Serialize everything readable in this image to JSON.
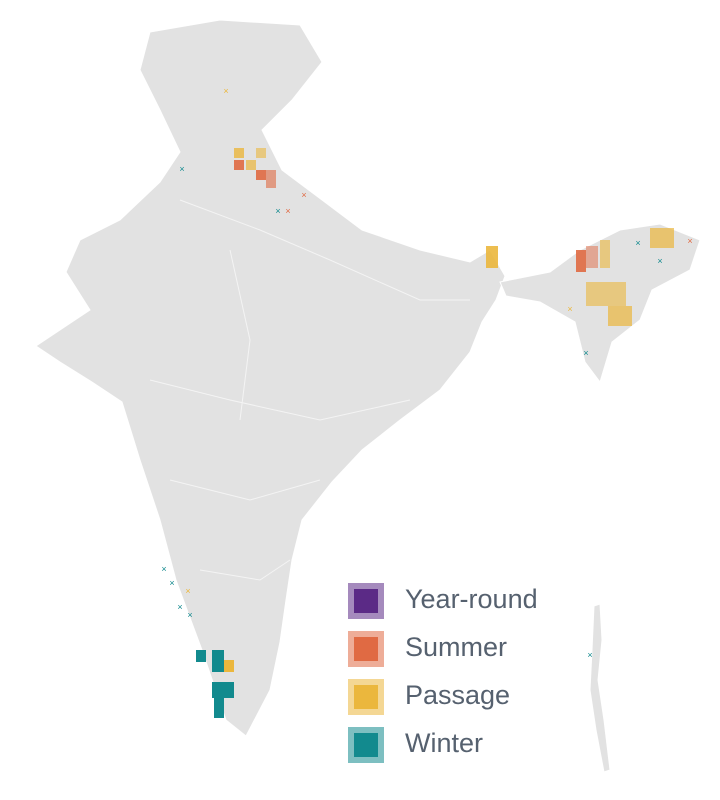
{
  "legend": {
    "items": [
      {
        "label": "Year-round",
        "color": "#5b2a86"
      },
      {
        "label": "Summer",
        "color": "#e06a43"
      },
      {
        "label": "Passage",
        "color": "#ebb73d"
      },
      {
        "label": "Winter",
        "color": "#128a8e"
      }
    ]
  }
}
